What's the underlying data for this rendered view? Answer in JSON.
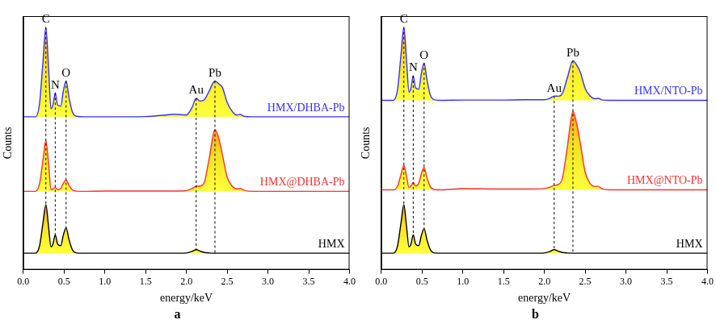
{
  "chart_data": [
    {
      "type": "line",
      "title": "a",
      "x_label": "energy/keV",
      "y_label": "Counts",
      "xlim": [
        0,
        4
      ],
      "xticks": [
        {
          "value": 0,
          "label": "0.0"
        },
        0.5,
        {
          "value": 1,
          "label": "1.0"
        },
        1.5,
        {
          "value": 2,
          "label": "2.0"
        },
        2.5,
        {
          "value": 3,
          "label": "3.0"
        },
        3.5,
        {
          "value": 4,
          "label": "4.0"
        }
      ],
      "ylim": [
        0,
        100
      ],
      "grid": false,
      "tick_labels": "x",
      "peaks": [
        {
          "label": "C",
          "x": 0.277
        },
        {
          "label": "N",
          "x": 0.392
        },
        {
          "label": "O",
          "x": 0.525
        },
        {
          "label": "Au",
          "x": 2.12
        },
        {
          "label": "Pb",
          "x": 2.35
        }
      ],
      "x": [
        0,
        0.15,
        0.2,
        0.24,
        0.277,
        0.31,
        0.34,
        0.365,
        0.392,
        0.42,
        0.46,
        0.49,
        0.525,
        0.56,
        0.6,
        0.65,
        0.75,
        1.0,
        1.5,
        1.75,
        1.85,
        2.0,
        2.07,
        2.12,
        2.17,
        2.22,
        2.28,
        2.35,
        2.4,
        2.44,
        2.5,
        2.56,
        2.62,
        2.66,
        2.7,
        2.8,
        3.0,
        3.5,
        4.0
      ],
      "series": [
        {
          "name": "HMX/DHBA-Pb",
          "color": "#3333ff",
          "values": [
            60.3,
            60.3,
            65.6,
            81.5,
            95.6,
            79.7,
            63.5,
            65.0,
            69.7,
            65.0,
            64.5,
            70.2,
            74.4,
            68.1,
            62.4,
            60.5,
            60.3,
            60.3,
            60.4,
            61.0,
            61.3,
            61.0,
            64.0,
            67.6,
            66.5,
            67.0,
            70.5,
            74.4,
            73.2,
            72.0,
            66.0,
            62.5,
            61.0,
            61.2,
            60.6,
            60.3,
            60.3,
            60.3,
            60.3
          ]
        },
        {
          "name": "HMX@DHBA-Pb",
          "color": "#ff3030",
          "values": [
            30.9,
            30.9,
            33.9,
            42.9,
            50.9,
            41.9,
            31.5,
            31.8,
            32.4,
            31.6,
            32.0,
            34.0,
            35.3,
            33.3,
            31.5,
            31.0,
            30.9,
            31.0,
            31.0,
            31.0,
            31.0,
            31.2,
            32.0,
            32.9,
            33.0,
            34.5,
            44.0,
            55.3,
            51.5,
            45.6,
            36.5,
            33.0,
            31.8,
            32.0,
            31.4,
            30.9,
            30.9,
            30.9,
            30.9
          ]
        },
        {
          "name": "HMX",
          "color": "#000000",
          "values": [
            6.5,
            6.5,
            9.4,
            18.0,
            25.6,
            17.0,
            9.0,
            10.2,
            13.8,
            10.2,
            9.5,
            13.5,
            16.5,
            12.0,
            8.0,
            6.6,
            6.5,
            6.5,
            6.5,
            6.5,
            6.5,
            6.6,
            7.2,
            7.9,
            7.3,
            6.8,
            6.6,
            6.5,
            6.5,
            6.5,
            6.5,
            6.5,
            6.5,
            6.5,
            6.5,
            6.5,
            6.5,
            6.5,
            6.5
          ]
        }
      ]
    },
    {
      "type": "line",
      "title": "b",
      "x_label": "energy/keV",
      "y_label": "Counts",
      "xlim": [
        0,
        4
      ],
      "xticks": [
        {
          "value": 0,
          "label": "0.0"
        },
        0.5,
        {
          "value": 1,
          "label": "1.0"
        },
        1.5,
        {
          "value": 2,
          "label": "2.0"
        },
        2.5,
        {
          "value": 3,
          "label": "3.0"
        },
        3.5,
        {
          "value": 4,
          "label": "4.0"
        }
      ],
      "ylim": [
        0,
        100
      ],
      "grid": false,
      "tick_labels": "x",
      "peaks": [
        {
          "label": "C",
          "x": 0.277
        },
        {
          "label": "N",
          "x": 0.392
        },
        {
          "label": "O",
          "x": 0.525
        },
        {
          "label": "Au",
          "x": 2.12
        },
        {
          "label": "Pb",
          "x": 2.35
        }
      ],
      "x": [
        0,
        0.15,
        0.2,
        0.24,
        0.277,
        0.31,
        0.34,
        0.365,
        0.392,
        0.42,
        0.46,
        0.49,
        0.525,
        0.56,
        0.6,
        0.65,
        0.75,
        1.0,
        1.5,
        1.75,
        1.85,
        2.0,
        2.07,
        2.12,
        2.17,
        2.22,
        2.28,
        2.35,
        2.4,
        2.44,
        2.5,
        2.56,
        2.62,
        2.66,
        2.7,
        2.8,
        3.0,
        3.5,
        4.0
      ],
      "series": [
        {
          "name": "HMX/NTO-Pb",
          "color": "#3333ff",
          "values": [
            66.8,
            66.8,
            71.1,
            84.1,
            95.6,
            82.6,
            70.0,
            71.7,
            76.5,
            71.7,
            71.2,
            77.1,
            81.5,
            74.9,
            69.0,
            67.0,
            66.8,
            66.9,
            66.9,
            67.0,
            67.0,
            67.0,
            67.6,
            68.5,
            68.4,
            69.5,
            75.5,
            82.4,
            80.5,
            77.9,
            71.5,
            68.5,
            67.4,
            67.6,
            67.0,
            66.8,
            66.8,
            66.8,
            66.8
          ]
        },
        {
          "name": "HMX@NTO-Pb",
          "color": "#ff3030",
          "values": [
            31.5,
            31.5,
            33.0,
            37.3,
            41.2,
            36.8,
            32.4,
            33.0,
            34.4,
            33.0,
            34.1,
            37.7,
            40.3,
            36.3,
            32.8,
            31.6,
            31.5,
            32.0,
            31.8,
            31.8,
            31.8,
            32.0,
            32.6,
            33.2,
            33.6,
            36.0,
            48.0,
            62.4,
            57.0,
            50.0,
            38.5,
            34.0,
            32.8,
            32.9,
            32.0,
            31.5,
            31.5,
            31.5,
            31.5
          ]
        },
        {
          "name": "HMX",
          "color": "#000000",
          "values": [
            6.5,
            6.5,
            9.4,
            18.0,
            25.6,
            17.0,
            9.0,
            10.2,
            13.8,
            10.2,
            9.5,
            13.3,
            16.2,
            11.8,
            8.0,
            6.6,
            6.5,
            6.5,
            6.5,
            6.5,
            6.5,
            6.6,
            7.2,
            7.9,
            7.3,
            6.8,
            6.6,
            6.5,
            6.5,
            6.5,
            6.5,
            6.5,
            6.5,
            6.5,
            6.5,
            6.5,
            6.5,
            6.5,
            6.5
          ]
        }
      ]
    }
  ]
}
